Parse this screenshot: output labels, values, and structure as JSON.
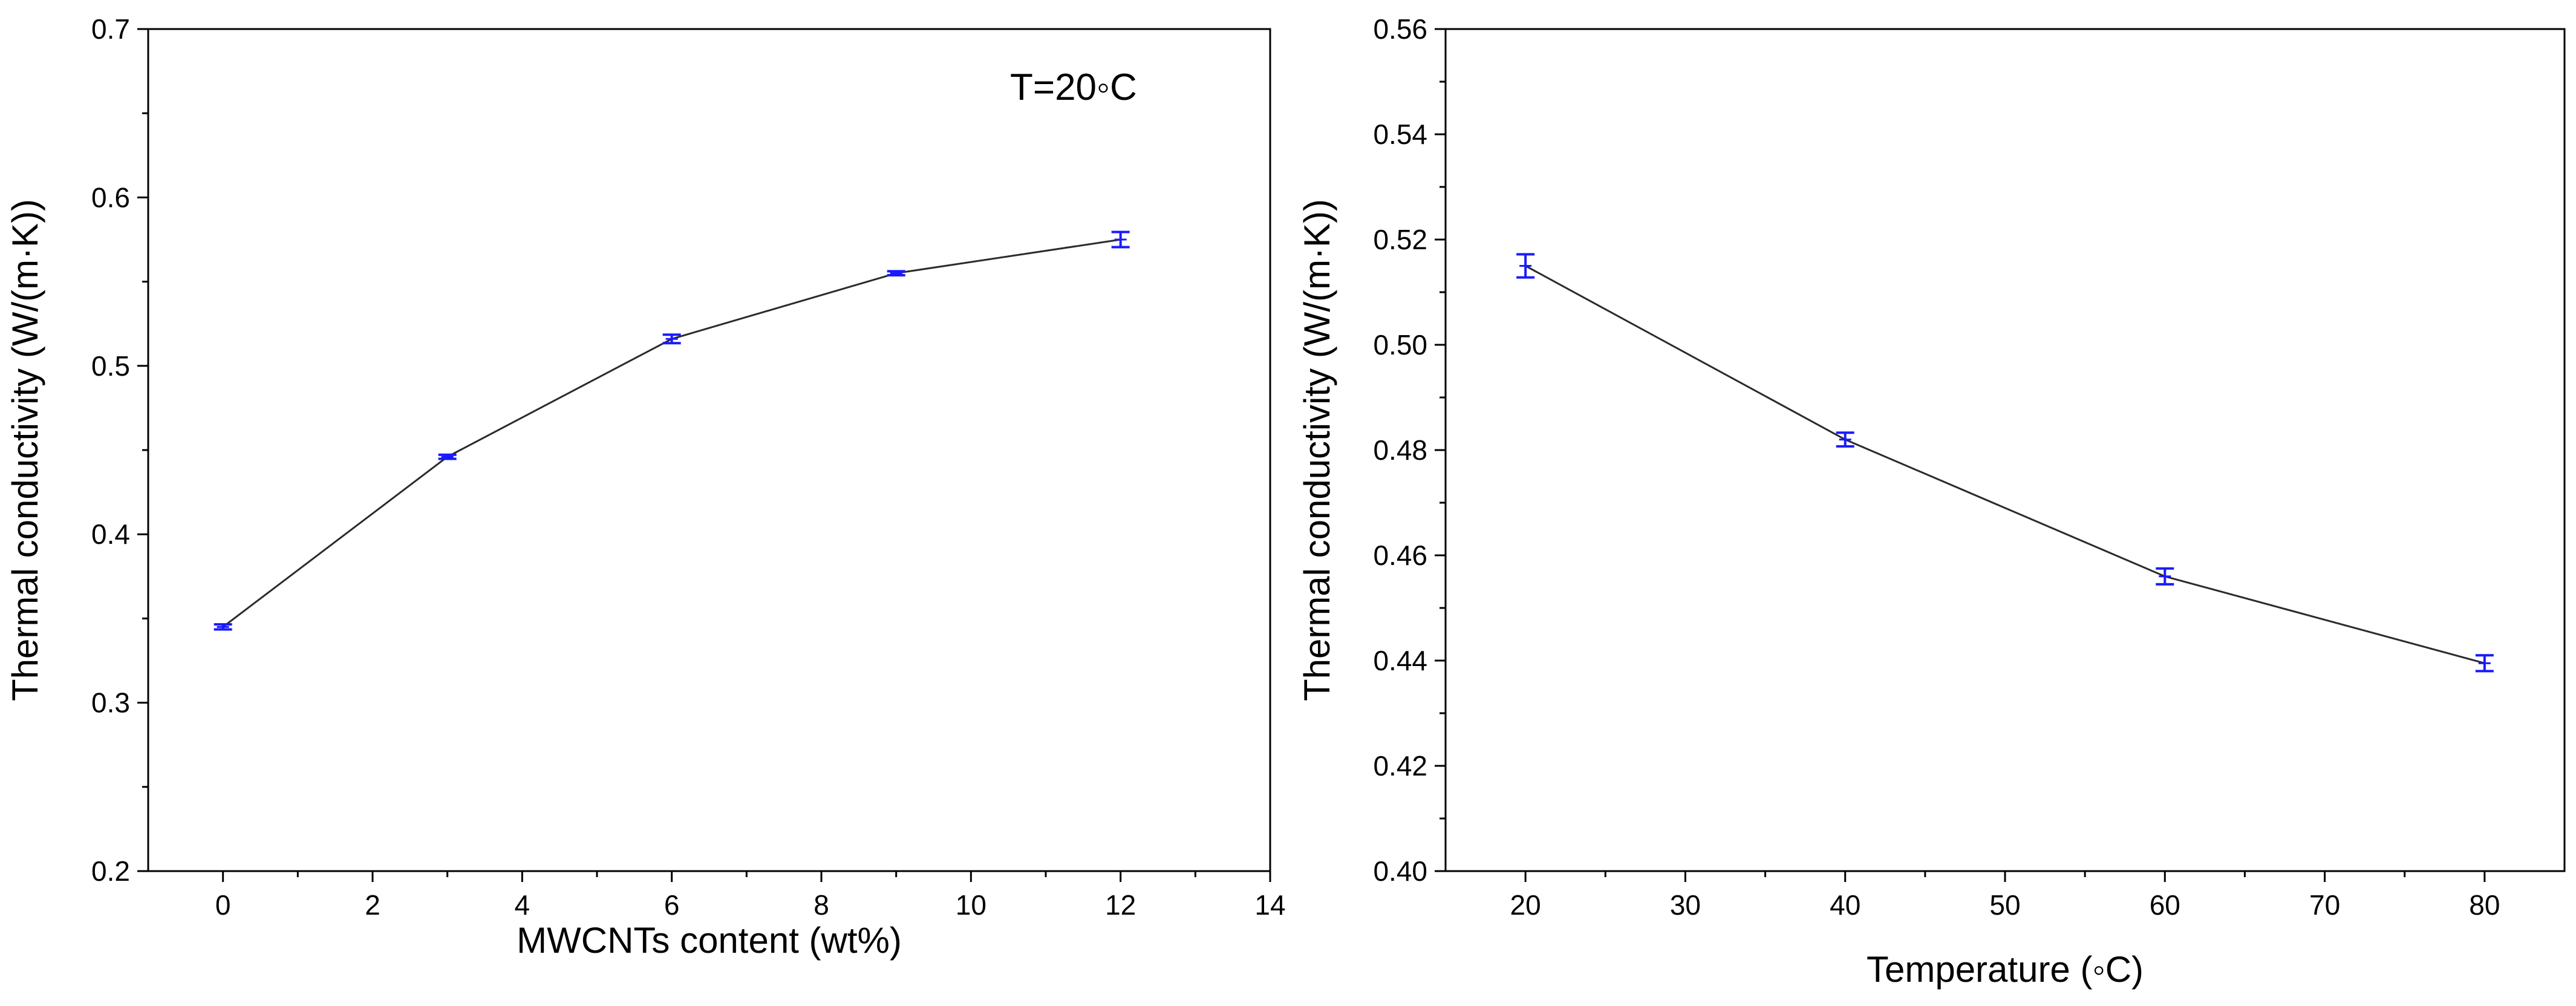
{
  "chart_data": [
    {
      "type": "line",
      "xlabel": "MWCNTs content (wt%)",
      "ylabel": "Thermal conductivity (W/(m·K))",
      "annotation": "T=20◦C",
      "xlim": [
        -1,
        14
      ],
      "ylim": [
        0.2,
        0.7
      ],
      "xticks": [
        0,
        2,
        4,
        6,
        8,
        10,
        12,
        14
      ],
      "xtick_labels": [
        "0",
        "2",
        "4",
        "6",
        "8",
        "10",
        "12",
        "14"
      ],
      "xminor": [
        1,
        3,
        5,
        7,
        9,
        11,
        13
      ],
      "yticks": [
        0.2,
        0.3,
        0.4,
        0.5,
        0.6,
        0.7
      ],
      "ytick_labels": [
        "0.2",
        "0.3",
        "0.4",
        "0.5",
        "0.6",
        "0.7"
      ],
      "yminor": [
        0.25,
        0.35,
        0.45,
        0.55,
        0.65
      ],
      "series": [
        {
          "name": "Thermal conductivity",
          "x": [
            0,
            3,
            6,
            9,
            12
          ],
          "values": [
            0.345,
            0.446,
            0.516,
            0.555,
            0.575
          ],
          "errors": [
            0.0015,
            0.0012,
            0.0025,
            0.0012,
            0.0045
          ],
          "line_color": "#2b2b2b",
          "marker_color": "#1a1aff"
        }
      ]
    },
    {
      "type": "line",
      "xlabel": "Temperature (◦C)",
      "ylabel": "Thermal conductivity (W/(m·K))",
      "xlim": [
        15,
        85
      ],
      "ylim": [
        0.4,
        0.56
      ],
      "xticks": [
        20,
        30,
        40,
        50,
        60,
        70,
        80
      ],
      "xtick_labels": [
        "20",
        "30",
        "40",
        "50",
        "60",
        "70",
        "80"
      ],
      "xminor": [
        25,
        35,
        45,
        55,
        65,
        75
      ],
      "yticks": [
        0.4,
        0.42,
        0.44,
        0.46,
        0.48,
        0.5,
        0.52,
        0.54,
        0.56
      ],
      "ytick_labels": [
        "0.40",
        "0.42",
        "0.44",
        "0.46",
        "0.48",
        "0.50",
        "0.52",
        "0.54",
        "0.56"
      ],
      "yminor": [
        0.41,
        0.43,
        0.45,
        0.47,
        0.49,
        0.51,
        0.53,
        0.55
      ],
      "series": [
        {
          "name": "Thermal conductivity",
          "x": [
            20,
            40,
            60,
            80
          ],
          "values": [
            0.515,
            0.482,
            0.456,
            0.4395
          ],
          "errors": [
            0.0022,
            0.0013,
            0.0015,
            0.0015
          ],
          "line_color": "#2b2b2b",
          "marker_color": "#1a1aff"
        }
      ]
    }
  ]
}
